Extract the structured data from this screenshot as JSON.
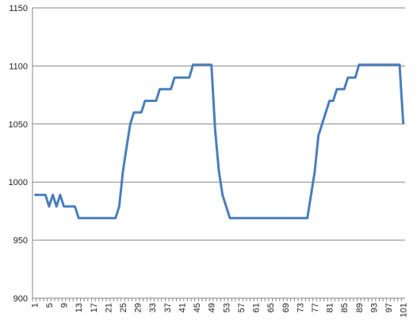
{
  "chart_data": {
    "type": "line",
    "categories": [
      "1",
      null,
      null,
      null,
      "5",
      null,
      null,
      null,
      "9",
      null,
      null,
      null,
      "13",
      null,
      null,
      null,
      "17",
      null,
      null,
      null,
      "21",
      null,
      null,
      null,
      "25",
      null,
      null,
      null,
      "29",
      null,
      null,
      null,
      "33",
      null,
      null,
      null,
      "37",
      null,
      null,
      null,
      "41",
      null,
      null,
      null,
      "45",
      null,
      null,
      null,
      "49",
      null,
      null,
      null,
      "53",
      null,
      null,
      null,
      "57",
      null,
      null,
      null,
      "61",
      null,
      null,
      null,
      "65",
      null,
      null,
      null,
      "69",
      null,
      null,
      null,
      "73",
      null,
      null,
      null,
      "77",
      null,
      null,
      null,
      "81",
      null,
      null,
      null,
      "85",
      null,
      null,
      null,
      "89",
      null,
      null,
      null,
      "93",
      null,
      null,
      null,
      "97",
      null,
      null,
      null,
      "101"
    ],
    "series": [
      {
        "color": "#4a7ebb",
        "values": [
          989,
          989,
          989,
          989,
          979,
          989,
          979,
          989,
          979,
          979,
          979,
          979,
          969,
          969,
          969,
          969,
          969,
          969,
          969,
          969,
          969,
          969,
          969,
          979,
          1009,
          1030,
          1050,
          1060,
          1060,
          1060,
          1070,
          1070,
          1070,
          1070,
          1080,
          1080,
          1080,
          1080,
          1090,
          1090,
          1090,
          1090,
          1090,
          1101,
          1101,
          1101,
          1101,
          1101,
          1101,
          1045,
          1010,
          989,
          979,
          969,
          969,
          969,
          969,
          969,
          969,
          969,
          969,
          969,
          969,
          969,
          969,
          969,
          969,
          969,
          969,
          969,
          969,
          969,
          969,
          969,
          969,
          989,
          1009,
          1040,
          1050,
          1060,
          1070,
          1070,
          1080,
          1080,
          1080,
          1090,
          1090,
          1090,
          1101,
          1101,
          1101,
          1101,
          1101,
          1101,
          1101,
          1101,
          1101,
          1101,
          1101,
          1101,
          1050
        ]
      }
    ],
    "ylim": [
      900,
      1150
    ],
    "yticks": [
      900,
      950,
      1000,
      1050,
      1100,
      1150
    ],
    "grid": true
  }
}
